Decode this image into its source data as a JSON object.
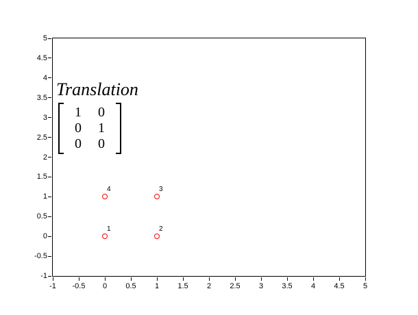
{
  "figure": {
    "background_color": "#ffffff",
    "axis_color": "#000000"
  },
  "annotation": {
    "title": "Translation",
    "matrix": [
      [
        "1",
        "0"
      ],
      [
        "0",
        "1"
      ],
      [
        "0",
        "0"
      ]
    ]
  },
  "chart_data": {
    "type": "scatter",
    "title": "",
    "xlabel": "",
    "ylabel": "",
    "xlim": [
      -1,
      5
    ],
    "ylim": [
      -1,
      5
    ],
    "x_ticks": [
      -1,
      -0.5,
      0,
      0.5,
      1,
      1.5,
      2,
      2.5,
      3,
      3.5,
      4,
      4.5,
      5
    ],
    "y_ticks": [
      -1,
      -0.5,
      0,
      0.5,
      1,
      1.5,
      2,
      2.5,
      3,
      3.5,
      4,
      4.5,
      5
    ],
    "grid": false,
    "legend": null,
    "marker": {
      "shape": "circle-open",
      "color": "#ff0000"
    },
    "points": [
      {
        "label": "1",
        "x": 0,
        "y": 0
      },
      {
        "label": "2",
        "x": 1,
        "y": 0
      },
      {
        "label": "3",
        "x": 1,
        "y": 1
      },
      {
        "label": "4",
        "x": 0,
        "y": 1
      }
    ]
  }
}
